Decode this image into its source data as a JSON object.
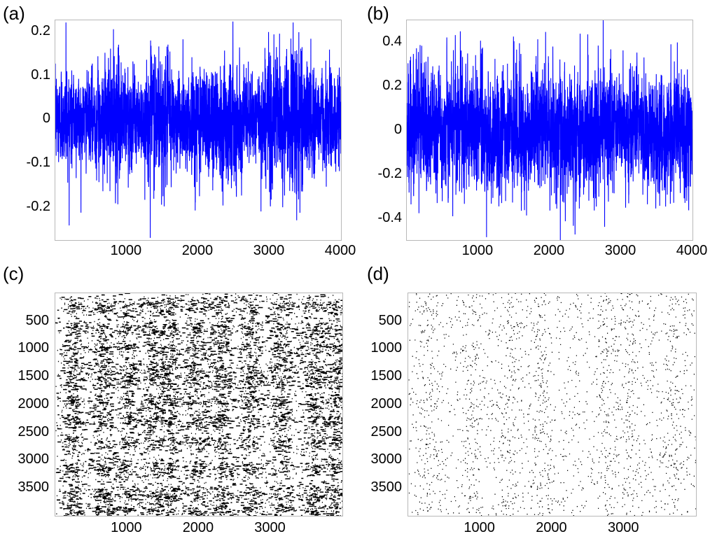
{
  "chart_data": [
    {
      "panel": "(a)",
      "type": "line",
      "color": "#0000ff",
      "x": {
        "n": 4000,
        "lim": [
          1,
          4000
        ],
        "ticks": [
          1000,
          2000,
          3000,
          4000
        ],
        "tick_labels": [
          "1000",
          "2000",
          "3000",
          "4000"
        ]
      },
      "y": {
        "lim": [
          -0.275,
          0.225
        ],
        "ticks": [
          0.2,
          0.1,
          0,
          -0.1,
          -0.2
        ],
        "tick_labels": [
          "0.2",
          "0.1",
          "0",
          "-0.1",
          "-0.2"
        ]
      },
      "envelope": {
        "x": [
          0,
          200,
          400,
          600,
          800,
          1000,
          1200,
          1400,
          1600,
          1800,
          2000,
          2200,
          2400,
          2600,
          2800,
          3000,
          3200,
          3400,
          3600,
          3800,
          4000
        ],
        "amplitude": [
          0.07,
          0.09,
          0.06,
          0.08,
          0.1,
          0.09,
          0.05,
          0.12,
          0.09,
          0.07,
          0.1,
          0.09,
          0.1,
          0.08,
          0.06,
          0.11,
          0.1,
          0.12,
          0.09,
          0.08,
          0.07
        ]
      },
      "extremes": [
        {
          "x": 1330,
          "y": -0.27
        },
        {
          "x": 3330,
          "y": 0.22
        },
        {
          "x": 150,
          "y": 0.22
        },
        {
          "x": 3380,
          "y": -0.23
        },
        {
          "x": 2880,
          "y": -0.21
        }
      ]
    },
    {
      "panel": "(b)",
      "type": "line",
      "color": "#0000ff",
      "x": {
        "n": 4000,
        "lim": [
          1,
          4000
        ],
        "ticks": [
          1000,
          2000,
          3000,
          4000
        ],
        "tick_labels": [
          "1000",
          "2000",
          "3000",
          "4000"
        ]
      },
      "y": {
        "lim": [
          -0.5,
          0.5
        ],
        "ticks": [
          0.4,
          0.2,
          0,
          -0.2,
          -0.4
        ],
        "tick_labels": [
          "0.4",
          "0.2",
          "0",
          "-0.2",
          "-0.4"
        ]
      },
      "envelope": {
        "x": [
          0,
          500,
          1000,
          1500,
          2000,
          2500,
          3000,
          3500,
          4000
        ],
        "amplitude": [
          0.2,
          0.2,
          0.2,
          0.19,
          0.21,
          0.2,
          0.19,
          0.2,
          0.19
        ]
      },
      "extremes": [
        {
          "x": 2750,
          "y": 0.5
        },
        {
          "x": 2150,
          "y": -0.5
        },
        {
          "x": 750,
          "y": -0.48
        },
        {
          "x": 750,
          "y": 0.45
        },
        {
          "x": 2770,
          "y": -0.44
        }
      ]
    },
    {
      "panel": "(c)",
      "type": "scatter",
      "subtype": "recurrence_plot",
      "color": "#000000",
      "x": {
        "lim": [
          1,
          4000
        ],
        "ticks": [
          1000,
          2000,
          3000
        ],
        "tick_labels": [
          "1000",
          "2000",
          "3000"
        ]
      },
      "y": {
        "lim": [
          1,
          4000
        ],
        "reversed": true,
        "ticks": [
          500,
          1000,
          1500,
          2000,
          2500,
          3000,
          3500
        ],
        "tick_labels": [
          "500",
          "1000",
          "1500",
          "2000",
          "2500",
          "3000",
          "3500"
        ]
      },
      "density": "high",
      "band_centers": [
        250,
        650,
        1000,
        1350,
        1600,
        1950,
        2300,
        2700,
        3150,
        3600,
        3900
      ]
    },
    {
      "panel": "(d)",
      "type": "scatter",
      "subtype": "recurrence_plot",
      "color": "#000000",
      "x": {
        "lim": [
          1,
          4000
        ],
        "ticks": [
          1000,
          2000,
          3000
        ],
        "tick_labels": [
          "1000",
          "2000",
          "3000"
        ]
      },
      "y": {
        "lim": [
          1,
          4000
        ],
        "reversed": true,
        "ticks": [
          500,
          1000,
          1500,
          2000,
          2500,
          3000,
          3500
        ],
        "tick_labels": [
          "500",
          "1000",
          "1500",
          "2000",
          "2500",
          "3000",
          "3500"
        ]
      },
      "density": "low",
      "band_centers": [
        300,
        900,
        1400,
        1850,
        2750,
        3100,
        3700
      ]
    }
  ]
}
